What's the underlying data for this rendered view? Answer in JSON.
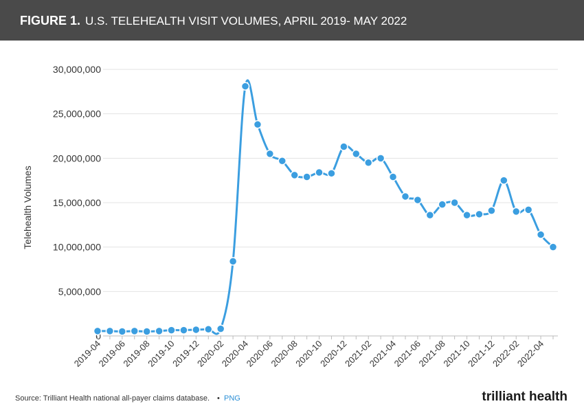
{
  "chart_data": {
    "type": "line",
    "figure_label": "FIGURE 1.",
    "title": "U.S. TELEHEALTH VISIT VOLUMES, APRIL 2019- MAY 2022",
    "y_label": "Telehealth Volumes",
    "categories": [
      "2019-04",
      null,
      "2019-06",
      null,
      "2019-08",
      null,
      "2019-10",
      null,
      "2019-12",
      null,
      "2020-02",
      null,
      "2020-04",
      null,
      "2020-06",
      null,
      "2020-08",
      null,
      "2020-10",
      null,
      "2020-12",
      null,
      "2021-02",
      null,
      "2021-04",
      null,
      "2021-06",
      null,
      "2021-08",
      null,
      "2021-10",
      null,
      "2021-12",
      null,
      "2022-02",
      null,
      "2022-04",
      null
    ],
    "series": [
      {
        "name": "Telehealth Volumes",
        "color": "#3b9ee0",
        "values": [
          550000,
          550000,
          500000,
          550000,
          500000,
          550000,
          650000,
          650000,
          700000,
          750000,
          800000,
          8400000,
          28100000,
          23800000,
          20500000,
          19700000,
          18100000,
          17900000,
          18400000,
          18300000,
          21300000,
          20500000,
          19500000,
          20000000,
          17900000,
          15700000,
          15300000,
          13600000,
          14800000,
          15000000,
          13600000,
          13700000,
          14100000,
          17500000,
          14000000,
          14200000,
          11400000,
          10000000
        ]
      }
    ],
    "ylim": [
      0,
      30000000
    ],
    "yticks": [
      0,
      {
        "value": 5000000,
        "label": "5,000,000"
      },
      {
        "value": 10000000,
        "label": "10,000,000"
      },
      {
        "value": 15000000,
        "label": "15,000,000"
      },
      {
        "value": 20000000,
        "label": "20,000,000"
      },
      {
        "value": 25000000,
        "label": "25,000,000"
      },
      {
        "value": 30000000,
        "label": "30,000,000"
      }
    ],
    "grid": true,
    "source": "Source: Trilliant Health national all-payer claims database.",
    "separator": "•",
    "download": "PNG",
    "logo": "trilliant health"
  }
}
